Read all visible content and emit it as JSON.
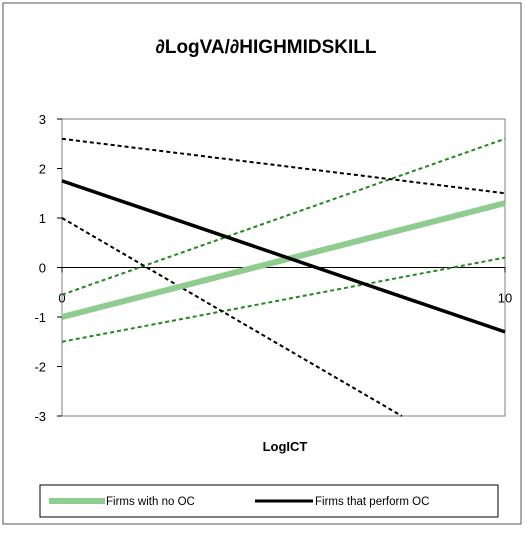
{
  "chart_data": {
    "type": "line",
    "title": "∂LogVA/∂HIGHMIDSKILL",
    "xlabel": "LogICT",
    "ylabel": "",
    "xlim": [
      0,
      10
    ],
    "ylim": [
      -3,
      3
    ],
    "xticks": [
      "0",
      "10"
    ],
    "yticks": [
      "3",
      "2",
      "1",
      "0",
      "-1",
      "-2",
      "-3"
    ],
    "grid": false,
    "legend_position": "bottom",
    "colors": {
      "no_oc": "#8fcc8f",
      "no_oc_ci": "#1f8a1f",
      "oc": "#000000",
      "oc_ci": "#000000",
      "frame": "#555555",
      "plot_border": "#808080"
    },
    "series": [
      {
        "key": "no_oc",
        "name": "Firms with no OC",
        "style": "thick-green",
        "x": [
          0,
          10
        ],
        "y": [
          -1.0,
          1.3
        ]
      },
      {
        "key": "no_oc_upper",
        "style": "dashed-green",
        "x": [
          0,
          10
        ],
        "y": [
          -0.55,
          2.6
        ]
      },
      {
        "key": "no_oc_lower",
        "style": "dashed-green",
        "x": [
          0,
          10
        ],
        "y": [
          -1.5,
          0.2
        ]
      },
      {
        "key": "oc",
        "name": "Firms that perform OC",
        "style": "solid-black",
        "x": [
          0,
          10
        ],
        "y": [
          1.75,
          -1.3
        ]
      },
      {
        "key": "oc_upper",
        "style": "dashed-black",
        "x": [
          0,
          10
        ],
        "y": [
          2.6,
          1.5
        ]
      },
      {
        "key": "oc_lower",
        "style": "dashed-black",
        "x": [
          0,
          7.67
        ],
        "y": [
          1.0,
          -3.0
        ]
      }
    ],
    "legend": [
      {
        "key": "no_oc",
        "label": "Firms with no OC"
      },
      {
        "key": "oc",
        "label": "Firms that perform OC"
      }
    ]
  }
}
